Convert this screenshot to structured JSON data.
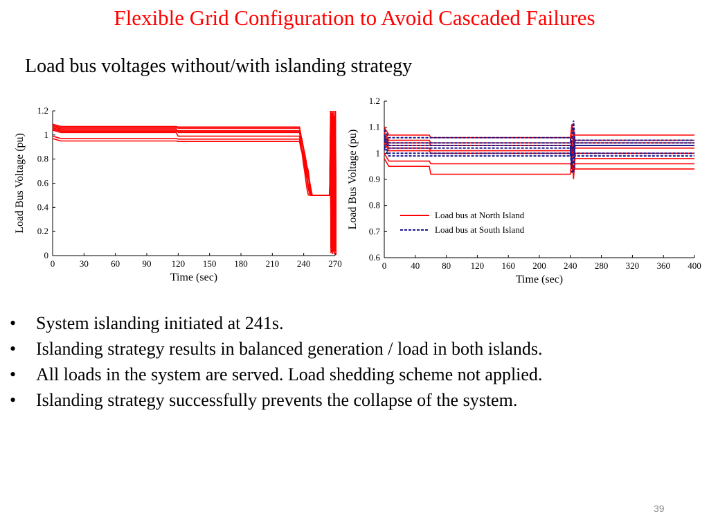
{
  "slide": {
    "title": "Flexible Grid Configuration to Avoid Cascaded Failures",
    "subtitle": "Load bus voltages without/with islanding strategy",
    "bullets": [
      "System islanding initiated at 241s.",
      "Islanding strategy results in balanced generation / load  in both islands.",
      "All loads in the system are served. Load shedding scheme not applied.",
      "Islanding strategy successfully prevents the collapse of the system."
    ],
    "bullet_symbol": "•",
    "page_number": "39",
    "colors": {
      "title": "#ff0000",
      "north": "#ff0000",
      "south": "#1a1a8c"
    }
  },
  "chart_data": [
    {
      "type": "line",
      "xlabel": "Time (sec)",
      "ylabel": "Load Bus Voltage (pu)",
      "xlim": [
        0,
        270
      ],
      "ylim": [
        0,
        1.2
      ],
      "xticks": [
        "0",
        "30",
        "60",
        "90",
        "120",
        "150",
        "180",
        "210",
        "240",
        "270"
      ],
      "yticks": [
        "0",
        "0.2",
        "0.4",
        "0.6",
        "0.8",
        "1",
        "1.2"
      ],
      "series_color": "#ff0000",
      "base_levels": [
        1.07,
        1.06,
        1.05,
        1.04,
        1.03,
        1.02,
        0.97,
        0.95
      ],
      "step_at": [
        60,
        120
      ],
      "collapse_start": 236,
      "collapse_end": 270
    },
    {
      "type": "line",
      "xlabel": "Time (sec)",
      "ylabel": "Load Bus Voltage (pu)",
      "xlim": [
        0,
        400
      ],
      "ylim": [
        0.6,
        1.2
      ],
      "xticks": [
        "0",
        "40",
        "80",
        "120",
        "160",
        "200",
        "240",
        "280",
        "320",
        "360",
        "400"
      ],
      "yticks": [
        "0.6",
        "0.7",
        "0.8",
        "0.9",
        "1",
        "1.1",
        "1.2"
      ],
      "legend_position": "lower-right",
      "islanding_time": 241,
      "series": [
        {
          "name": "Load bus at North Island",
          "style": "solid",
          "color": "#ff0000",
          "levels": [
            [
              1.07,
              1.06,
              1.07
            ],
            [
              1.05,
              1.04,
              1.04
            ],
            [
              1.03,
              1.03,
              1.02
            ],
            [
              1.02,
              1.01,
              1.0
            ],
            [
              0.97,
              0.96,
              0.96
            ],
            [
              0.95,
              0.92,
              0.94
            ],
            [
              1.04,
              1.03,
              1.05
            ],
            [
              1.01,
              1.0,
              0.98
            ]
          ]
        },
        {
          "name": "Load bus at South Island",
          "style": "dashed",
          "color": "#1a1a8c",
          "levels": [
            [
              1.06,
              1.06,
              1.05
            ],
            [
              1.04,
              1.04,
              1.04
            ],
            [
              1.03,
              1.03,
              1.03
            ],
            [
              1.02,
              1.02,
              1.03
            ],
            [
              1.0,
              1.0,
              1.0
            ],
            [
              0.99,
              0.99,
              0.99
            ]
          ]
        }
      ]
    }
  ]
}
